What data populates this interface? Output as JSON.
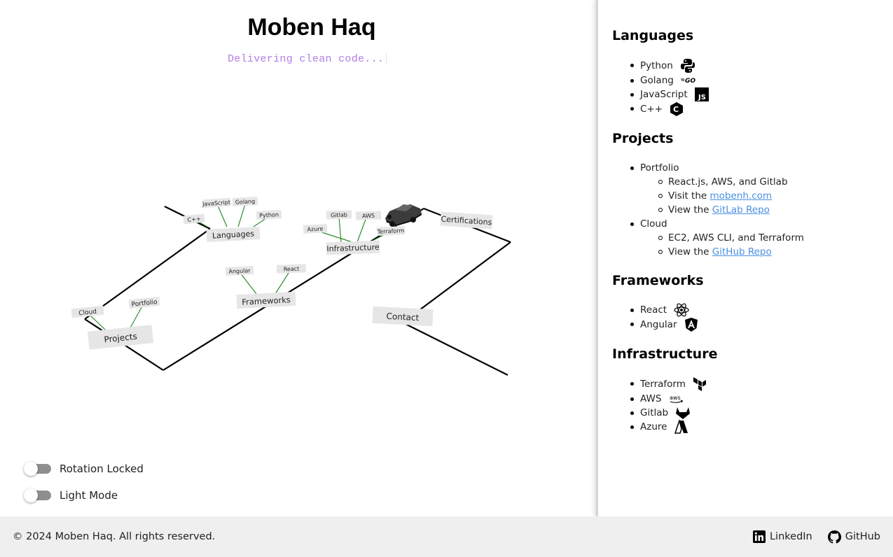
{
  "header": {
    "title": "Moben Haq",
    "typing_text": "Delivering clean code..."
  },
  "scene": {
    "nodes": {
      "languages": "Languages",
      "python": "Python",
      "golang": "Golang",
      "javascript": "JavaScript",
      "cpp": "C++",
      "infrastructure": "Infrastructure",
      "gitlab": "Gitlab",
      "aws": "AWS",
      "azure": "Azure",
      "terraform": "Terraform",
      "certifications": "Certifications",
      "frameworks": "Frameworks",
      "angular": "Angular",
      "react": "React",
      "projects": "Projects",
      "cloud": "Cloud",
      "portfolio": "Portfolio",
      "contact": "Contact"
    },
    "colors": {
      "path": "#000000",
      "branch": "#2e8b2e",
      "label_bg": "#e6e6e6"
    }
  },
  "controls": {
    "rotation_label": "Rotation Locked",
    "rotation_on": false,
    "theme_label": "Light Mode",
    "theme_on": false
  },
  "sidebar": {
    "languages": {
      "title": "Languages",
      "items": [
        {
          "label": "Python",
          "icon": "python-icon"
        },
        {
          "label": "Golang",
          "icon": "golang-icon"
        },
        {
          "label": "JavaScript",
          "icon": "javascript-icon"
        },
        {
          "label": "C++",
          "icon": "cpp-icon"
        }
      ]
    },
    "projects": {
      "title": "Projects",
      "portfolio": {
        "label": "Portfolio",
        "tech": "React.js, AWS, and Gitlab",
        "visit_prefix": "Visit the ",
        "visit_link": "mobenh.com",
        "repo_prefix": "View the ",
        "repo_link": "GitLab Repo"
      },
      "cloud": {
        "label": "Cloud",
        "tech": "EC2, AWS CLI, and Terraform",
        "repo_prefix": "View the ",
        "repo_link": "GitHub Repo"
      }
    },
    "frameworks": {
      "title": "Frameworks",
      "items": [
        {
          "label": "React",
          "icon": "react-icon"
        },
        {
          "label": "Angular",
          "icon": "angular-icon"
        }
      ]
    },
    "infrastructure": {
      "title": "Infrastructure",
      "items": [
        {
          "label": "Terraform",
          "icon": "terraform-icon"
        },
        {
          "label": "AWS",
          "icon": "aws-icon"
        },
        {
          "label": "Gitlab",
          "icon": "gitlab-icon"
        },
        {
          "label": "Azure",
          "icon": "azure-icon"
        }
      ]
    }
  },
  "footer": {
    "copyright": "© 2024 Moben Haq. All rights reserved.",
    "linkedin": "LinkedIn",
    "github": "GitHub"
  }
}
